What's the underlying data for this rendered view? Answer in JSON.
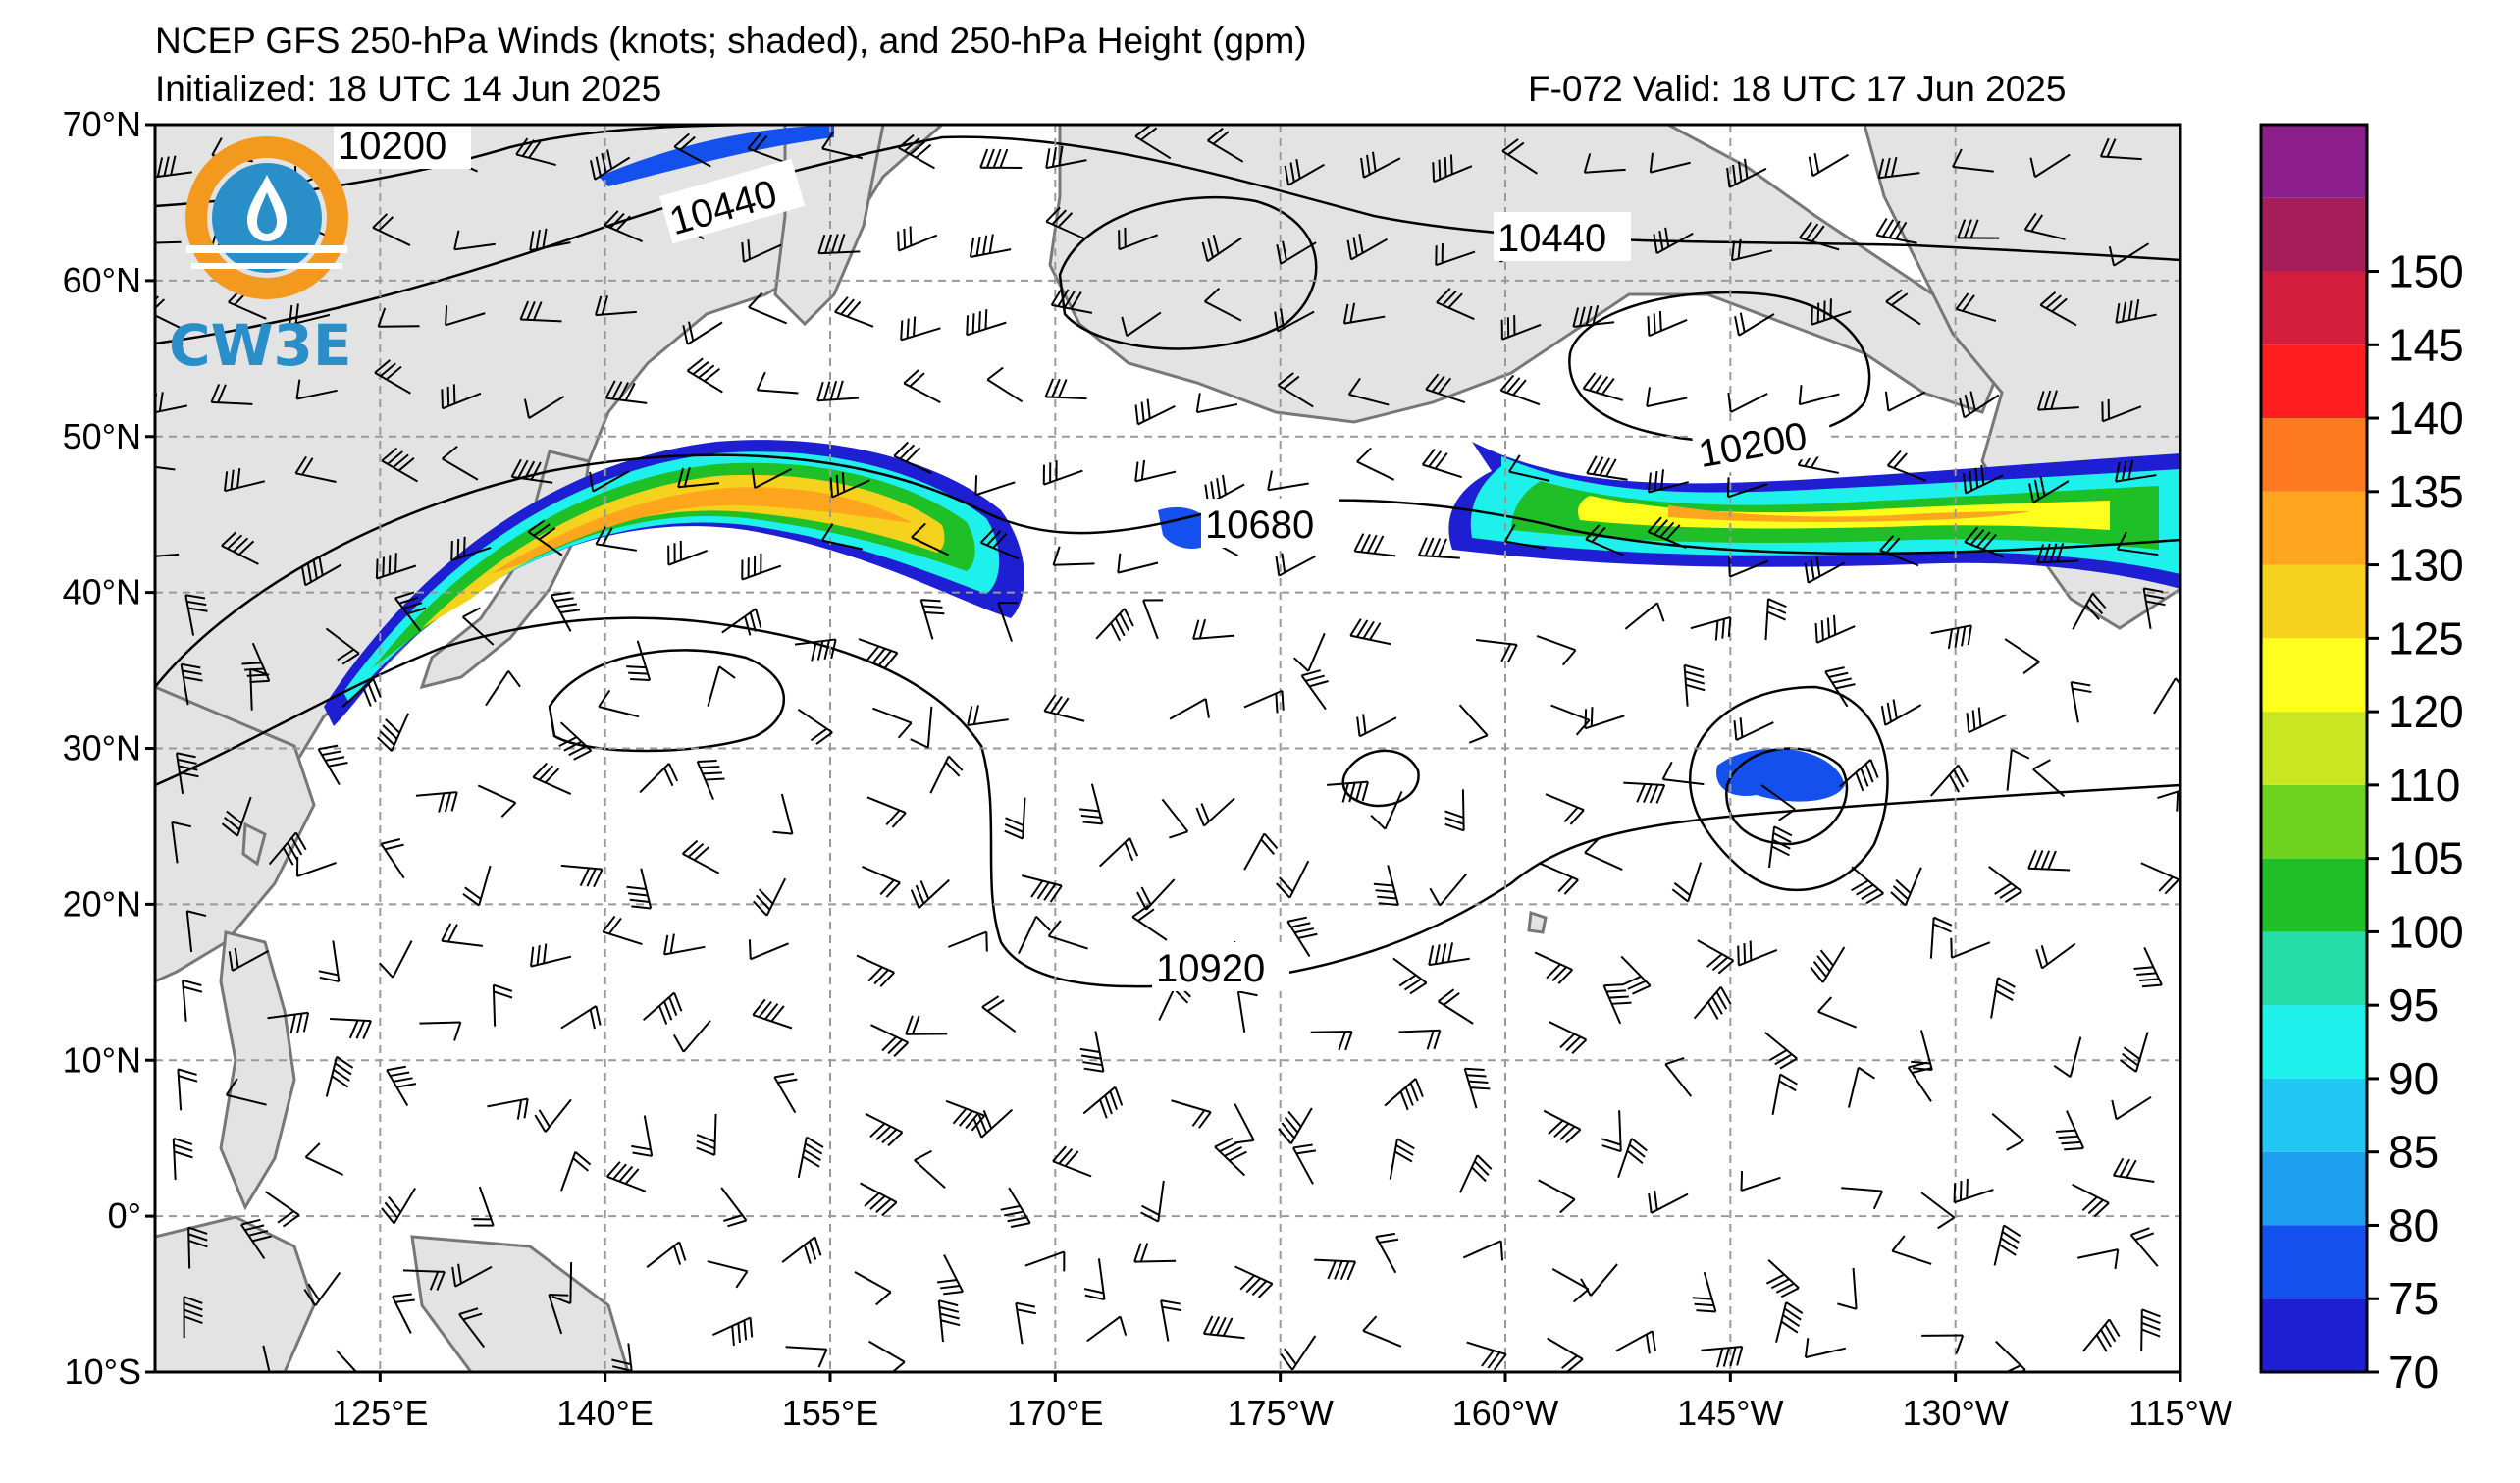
{
  "header": {
    "title": "NCEP GFS 250-hPa Winds (knots; shaded), and 250-hPa Height (gpm)",
    "initialized": "Initialized: 18 UTC 14 Jun 2025",
    "valid": "F-072  Valid: 18 UTC 17 Jun 2025"
  },
  "logo": {
    "text": "CW3E",
    "colors": {
      "ring": "#f39a1e",
      "disc": "#2a8fc8"
    }
  },
  "axes": {
    "lat_labels": [
      "70°N",
      "60°N",
      "50°N",
      "40°N",
      "30°N",
      "20°N",
      "10°N",
      "0°",
      "10°S"
    ],
    "lon_labels": [
      "125°E",
      "140°E",
      "155°E",
      "170°E",
      "175°W",
      "160°W",
      "145°W",
      "130°W",
      "115°W"
    ],
    "lat_range": [
      -10,
      70
    ],
    "lon_ticks": [
      125,
      140,
      155,
      170,
      185,
      200,
      215,
      230,
      245
    ],
    "gridlines": true
  },
  "contour_labels": [
    {
      "text": "10200"
    },
    {
      "text": "10440"
    },
    {
      "text": "10440"
    },
    {
      "text": "10200"
    },
    {
      "text": "10680"
    },
    {
      "text": "10920"
    }
  ],
  "colorbar": {
    "labels": [
      "70",
      "75",
      "80",
      "85",
      "90",
      "95",
      "100",
      "105",
      "110",
      "120",
      "125",
      "130",
      "135",
      "140",
      "145",
      "150"
    ],
    "levels": [
      70,
      75,
      80,
      85,
      90,
      95,
      100,
      105,
      110,
      115,
      120,
      125,
      130,
      135,
      140,
      145,
      150,
      155
    ],
    "colors": [
      "#1e1ed2",
      "#1450ee",
      "#1ea0f0",
      "#22c8f5",
      "#1ef0eb",
      "#24dca6",
      "#1fbf28",
      "#6ed21e",
      "#c8e622",
      "#ffff1e",
      "#f5d21e",
      "#ffa51e",
      "#ff7a1e",
      "#ff1e1e",
      "#d21e3c",
      "#a51e5a",
      "#8c1e8c"
    ]
  },
  "colors": {
    "land": "#e3e3e3",
    "coast": "#777777",
    "grid": "#999999"
  }
}
